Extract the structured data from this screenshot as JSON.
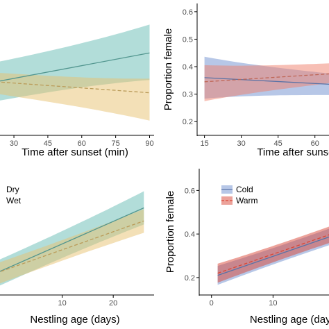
{
  "colors": {
    "teal": "#66bcb3",
    "tan": "#e8c26f",
    "blue": "#6f8fd0",
    "salmon": "#ef7f6b",
    "red_dashed": "#d94636",
    "axis": "#000000",
    "tick_text": "#4d4d4d"
  },
  "chart_data": [
    {
      "panel": "top-left",
      "type": "line",
      "xlabel": "Time after sunset (min)",
      "ylabel": "",
      "xlim": [
        22,
        92
      ],
      "ylim": [
        0.15,
        0.63
      ],
      "x_ticks": [
        30,
        45,
        60,
        75,
        90
      ],
      "y_ticks": [],
      "legend": null,
      "series": [
        {
          "name": "",
          "color": "teal",
          "dash": false,
          "x": [
            22,
            90
          ],
          "y": [
            0.345,
            0.45
          ],
          "lower": [
            0.28,
            0.36
          ],
          "upper": [
            0.41,
            0.545
          ]
        },
        {
          "name": "",
          "color": "tan",
          "dash": true,
          "x": [
            22,
            90
          ],
          "y": [
            0.345,
            0.305
          ],
          "lower": [
            0.305,
            0.21
          ],
          "upper": [
            0.375,
            0.35
          ]
        }
      ]
    },
    {
      "panel": "top-right",
      "type": "line",
      "xlabel": "Time after sunset",
      "ylabel": "Proportion female",
      "xlim": [
        12,
        68
      ],
      "ylim": [
        0.15,
        0.63
      ],
      "x_ticks": [
        15,
        30,
        45,
        60
      ],
      "y_ticks": [
        0.2,
        0.3,
        0.4,
        0.5,
        0.6
      ],
      "legend": null,
      "series": [
        {
          "name": "",
          "color": "blue",
          "dash": false,
          "x": [
            15,
            68
          ],
          "y": [
            0.36,
            0.335
          ],
          "lower": [
            0.29,
            0.3
          ],
          "upper": [
            0.43,
            0.37
          ]
        },
        {
          "name": "",
          "color": "salmon",
          "dash": true,
          "x": [
            15,
            68
          ],
          "y": [
            0.345,
            0.375
          ],
          "lower": [
            0.28,
            0.345
          ],
          "upper": [
            0.4,
            0.41
          ]
        }
      ]
    },
    {
      "panel": "bottom-left",
      "type": "line",
      "xlabel": "Nestling age (days)",
      "ylabel": "",
      "xlim": [
        -3,
        28
      ],
      "ylim": [
        0.12,
        0.7
      ],
      "x_ticks": [
        10,
        20
      ],
      "y_ticks": [],
      "legend": {
        "position": "top-left",
        "entries": [
          "Dry",
          "Wet"
        ]
      },
      "series": [
        {
          "name": "Dry",
          "color": "teal",
          "dash": false,
          "x": [
            -3,
            26
          ],
          "y": [
            0.22,
            0.52
          ],
          "lower": [
            0.16,
            0.45
          ],
          "upper": [
            0.27,
            0.59
          ]
        },
        {
          "name": "Wet",
          "color": "tan",
          "dash": true,
          "x": [
            -3,
            26
          ],
          "y": [
            0.22,
            0.46
          ],
          "lower": [
            0.17,
            0.41
          ],
          "upper": [
            0.26,
            0.51
          ]
        }
      ]
    },
    {
      "panel": "bottom-right",
      "type": "line",
      "xlabel": "Nestling age (days)",
      "ylabel": "Proportion female",
      "xlim": [
        -2,
        20
      ],
      "ylim": [
        0.12,
        0.7
      ],
      "x_ticks": [
        0,
        10
      ],
      "y_ticks": [
        0.2,
        0.4,
        0.6
      ],
      "legend": {
        "position": "top-left",
        "entries": [
          "Cold",
          "Warm"
        ]
      },
      "series": [
        {
          "name": "Cold",
          "color": "blue",
          "dash": false,
          "x": [
            1,
            20
          ],
          "y": [
            0.21,
            0.395
          ],
          "lower": [
            0.17,
            0.36
          ],
          "upper": [
            0.25,
            0.43
          ]
        },
        {
          "name": "Warm",
          "color": "red_dashed",
          "dash": true,
          "x": [
            1,
            20
          ],
          "y": [
            0.22,
            0.405
          ],
          "lower": [
            0.18,
            0.37
          ],
          "upper": [
            0.26,
            0.44
          ]
        }
      ]
    }
  ]
}
